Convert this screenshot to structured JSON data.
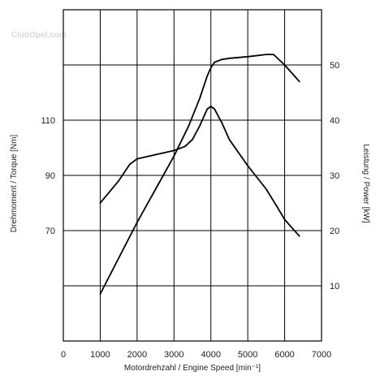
{
  "watermark": "ClubOpel.com",
  "chart_data": {
    "type": "line",
    "xlabel": "Motordrehzahl / Engine Speed [min⁻¹]",
    "ylabel_left": "Drehmoment / Torque [Nm]",
    "ylabel_right": "Leistung / Power [kW]",
    "xlim": [
      0,
      7000
    ],
    "x_ticks": [
      0,
      1000,
      2000,
      3000,
      4000,
      5000,
      6000,
      7000
    ],
    "ylim_left": [
      30,
      150
    ],
    "y_ticks_left": [
      70,
      90,
      110
    ],
    "ylim_right": [
      0,
      60
    ],
    "y_ticks_right": [
      10,
      20,
      30,
      40,
      50
    ],
    "grid": true,
    "series": [
      {
        "axis": "left",
        "x": [
          1000,
          1500,
          1800,
          2000,
          2500,
          3000,
          3300,
          3500,
          3700,
          3800,
          3900,
          4000,
          4100,
          4300,
          4500,
          5000,
          5500,
          5800,
          6000,
          6400
        ],
        "y": [
          80,
          88,
          94,
          96,
          97.5,
          99,
          100.5,
          103,
          108,
          111,
          114,
          115,
          114,
          109,
          103,
          93.5,
          85,
          78.5,
          74,
          68
        ]
      },
      {
        "axis": "right",
        "x": [
          1000,
          1500,
          2000,
          2500,
          3000,
          3400,
          3700,
          3900,
          4000,
          4100,
          4300,
          4500,
          5000,
          5500,
          5700,
          6000,
          6400
        ],
        "y": [
          8.5,
          15,
          21.5,
          27.5,
          33.5,
          39,
          44,
          48,
          49.5,
          50.5,
          51,
          51.2,
          51.5,
          51.9,
          51.9,
          50,
          47
        ]
      }
    ]
  }
}
